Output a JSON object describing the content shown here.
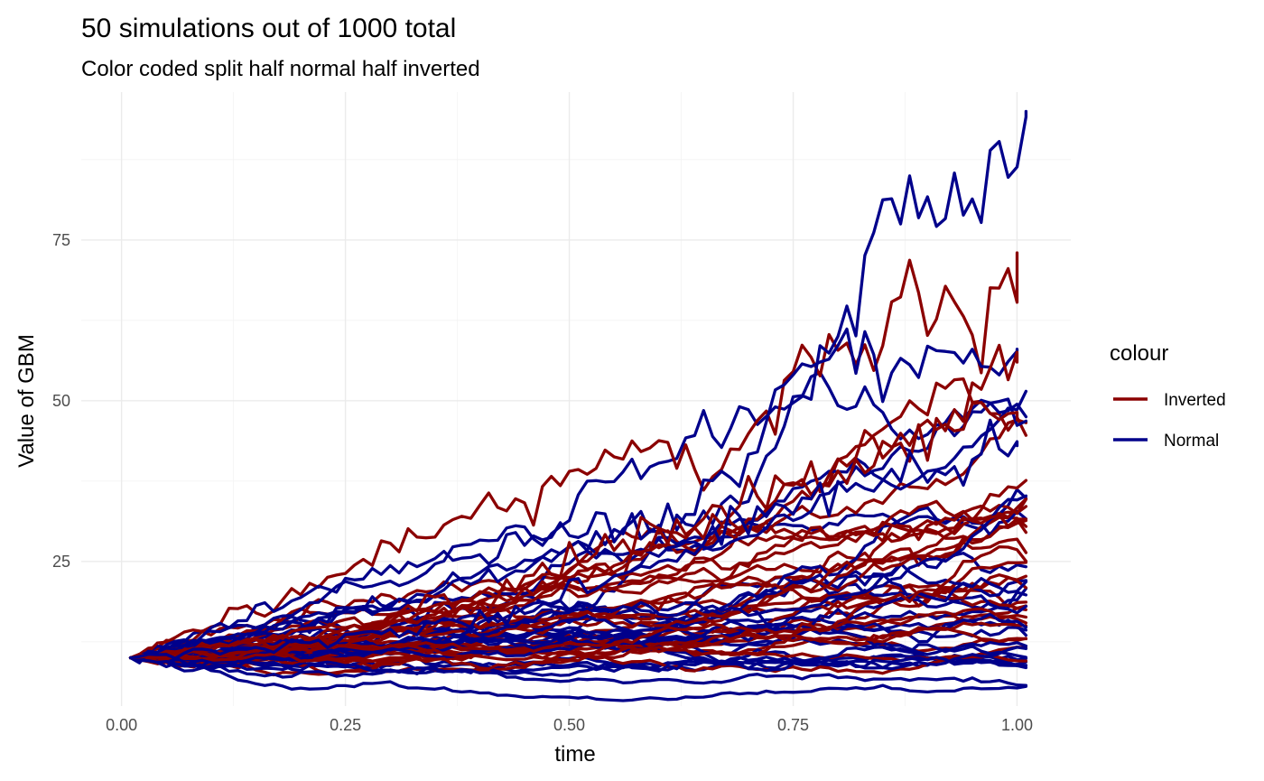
{
  "chart_data": {
    "type": "line",
    "title": "50 simulations out of 1000 total",
    "subtitle": "Color coded split half normal half inverted",
    "xlabel": "time",
    "ylabel": "Value of GBM",
    "xlim": [
      -0.045,
      1.06
    ],
    "ylim": [
      2.5,
      98
    ],
    "x_ticks": [
      0.0,
      0.25,
      0.5,
      0.75,
      1.0
    ],
    "x_tick_labels": [
      "0.00",
      "0.25",
      "0.50",
      "0.75",
      "1.00"
    ],
    "y_ticks": [
      25,
      50,
      75
    ],
    "y_tick_labels": [
      "25",
      "50",
      "75"
    ],
    "grid": true,
    "legend": {
      "title": "colour",
      "position": "right",
      "entries": [
        {
          "label": "Inverted",
          "color": "#8b0000"
        },
        {
          "label": "Normal",
          "color": "#00008b"
        }
      ]
    },
    "paths_per_group": 25,
    "start_value": 10,
    "series": [
      {
        "group": "Inverted",
        "color": "#8b0000",
        "key_points": [
          [
            0.01,
            10
          ],
          [
            0.1,
            15
          ],
          [
            0.2,
            20
          ],
          [
            0.3,
            27
          ],
          [
            0.4,
            33
          ],
          [
            0.5,
            38
          ],
          [
            0.55,
            42
          ],
          [
            0.6,
            43
          ],
          [
            0.65,
            40
          ],
          [
            0.7,
            44
          ],
          [
            0.75,
            52
          ],
          [
            0.8,
            58
          ],
          [
            0.85,
            61
          ],
          [
            0.88,
            70
          ],
          [
            0.9,
            66
          ],
          [
            0.95,
            61
          ],
          [
            1.0,
            73
          ]
        ]
      },
      {
        "group": "Normal",
        "color": "#00008b",
        "key_points": [
          [
            0.01,
            10
          ],
          [
            0.1,
            14
          ],
          [
            0.2,
            19
          ],
          [
            0.3,
            24
          ],
          [
            0.4,
            27
          ],
          [
            0.5,
            30
          ],
          [
            0.6,
            30
          ],
          [
            0.7,
            35
          ],
          [
            0.75,
            50
          ],
          [
            0.8,
            60
          ],
          [
            0.85,
            77
          ],
          [
            0.9,
            84
          ],
          [
            0.95,
            78
          ],
          [
            1.0,
            88
          ],
          [
            1.01,
            95
          ]
        ]
      },
      {
        "group": "Normal",
        "color": "#00008b",
        "key_points": [
          [
            0.01,
            10
          ],
          [
            0.2,
            15
          ],
          [
            0.4,
            22
          ],
          [
            0.5,
            27
          ],
          [
            0.6,
            30
          ],
          [
            0.7,
            40
          ],
          [
            0.75,
            55
          ],
          [
            0.8,
            58
          ],
          [
            0.85,
            55
          ],
          [
            0.9,
            55
          ],
          [
            0.95,
            57
          ],
          [
            1.0,
            58
          ]
        ]
      },
      {
        "group": "Inverted",
        "color": "#8b0000",
        "key_points": [
          [
            0.01,
            10
          ],
          [
            0.2,
            14
          ],
          [
            0.4,
            20
          ],
          [
            0.5,
            25
          ],
          [
            0.6,
            30
          ],
          [
            0.7,
            33
          ],
          [
            0.8,
            38
          ],
          [
            0.9,
            45
          ],
          [
            0.95,
            50
          ],
          [
            1.0,
            56
          ]
        ]
      },
      {
        "group": "Inverted",
        "color": "#8b0000",
        "key_points": [
          [
            0.01,
            10
          ],
          [
            0.2,
            13
          ],
          [
            0.4,
            18
          ],
          [
            0.5,
            22
          ],
          [
            0.6,
            28
          ],
          [
            0.7,
            34
          ],
          [
            0.8,
            40
          ],
          [
            0.9,
            47
          ],
          [
            1.0,
            47
          ]
        ]
      },
      {
        "group": "Normal",
        "color": "#00008b",
        "key_points": [
          [
            0.01,
            10
          ],
          [
            0.2,
            12
          ],
          [
            0.4,
            16
          ],
          [
            0.5,
            20
          ],
          [
            0.6,
            25
          ],
          [
            0.7,
            32
          ],
          [
            0.8,
            36
          ],
          [
            0.9,
            40
          ],
          [
            1.0,
            43
          ]
        ]
      }
    ]
  }
}
